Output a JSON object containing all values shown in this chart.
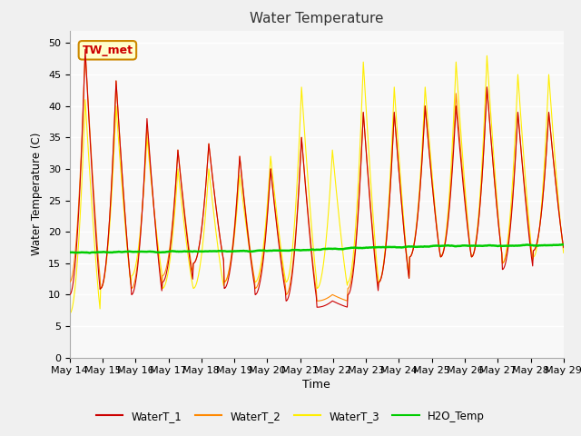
{
  "title": "Water Temperature",
  "xlabel": "Time",
  "ylabel": "Water Temperature (C)",
  "ylim": [
    0,
    52
  ],
  "yticks": [
    0,
    5,
    10,
    15,
    20,
    25,
    30,
    35,
    40,
    45,
    50
  ],
  "x_labels": [
    "May 14",
    "May 15",
    "May 16",
    "May 17",
    "May 18",
    "May 19",
    "May 20",
    "May 21",
    "May 22",
    "May 23",
    "May 24",
    "May 25",
    "May 26",
    "May 27",
    "May 28",
    "May 29"
  ],
  "colors": {
    "WaterT_1": "#cc0000",
    "WaterT_2": "#ff8800",
    "WaterT_3": "#ffee00",
    "H2O_Temp": "#00cc00"
  },
  "annotation_text": "TW_met",
  "annotation_color": "#cc0000",
  "annotation_bg": "#ffffcc",
  "annotation_border": "#cc8800",
  "bg_color": "#f0f0f0",
  "plot_bg_color": "#f8f8f8",
  "w1_peaks": [
    49,
    44,
    38,
    33,
    34,
    32,
    30,
    35,
    9,
    39,
    39,
    40,
    40,
    43,
    39,
    39
  ],
  "w1_mins": [
    10,
    11,
    10,
    12,
    15,
    11,
    10,
    9,
    8,
    10,
    12,
    16,
    16,
    16,
    14,
    17
  ],
  "w2_peaks": [
    49,
    44,
    37,
    33,
    34,
    32,
    30,
    35,
    10,
    39,
    39,
    40,
    42,
    43,
    39,
    39
  ],
  "w2_mins": [
    12,
    11,
    11,
    13,
    15,
    12,
    11,
    10,
    9,
    11,
    12,
    16,
    16,
    16,
    15,
    17
  ],
  "w3_peaks": [
    41,
    40,
    35,
    30,
    30,
    29,
    32,
    43,
    33,
    47,
    43,
    43,
    47,
    48,
    45,
    45
  ],
  "w3_mins": [
    7,
    11,
    13,
    11,
    11,
    12,
    12,
    12,
    11,
    12,
    12,
    16,
    16,
    16,
    15,
    16
  ],
  "h2o_vals": [
    16.7,
    16.75,
    16.8,
    16.85,
    16.9,
    16.9,
    17.0,
    17.1,
    17.3,
    17.5,
    17.6,
    17.7,
    17.75,
    17.8,
    17.85,
    17.9
  ],
  "n_days": 16,
  "pts_per_day": 48
}
